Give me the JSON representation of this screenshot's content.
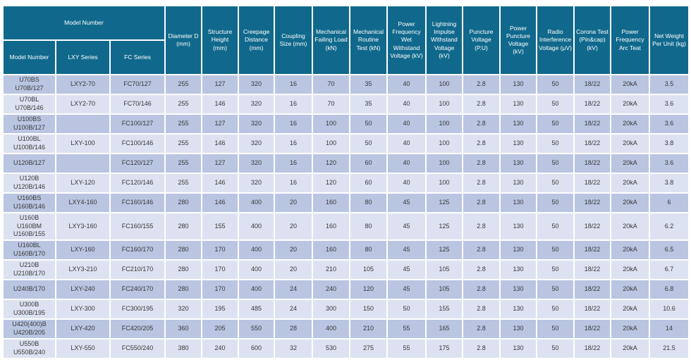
{
  "colors": {
    "header_bg": "#10698c",
    "header_text": "#ffffff",
    "row_dark": "#b9c5e1",
    "row_light": "#dce2f1",
    "cell_text": "#383838",
    "grid": "#ffffff"
  },
  "table": {
    "header_group": {
      "label": "Model Number",
      "span": 3
    },
    "sub_columns": [
      "Model Number",
      "LXY Series",
      "FC Series"
    ],
    "columns": [
      "Diameter D (mm)",
      "Structure Height (mm)",
      "Creepage Distance (mm)",
      "Coupling Size (mm)",
      "Mechanical Failing Load (kN)",
      "Mechanical Routine Test (kN)",
      "Power Frequency Wet Withstand Voltage (kV)",
      "Lightning Impulse Withstand Voltage (kV)",
      "Puncture Voltage (P.U)",
      "Power Puncture Voltage (kV)",
      "Radio Interference Voltage (μV)",
      "Corona Test (Pin&cap) (kV)",
      "Power Frequency Arc Teat",
      "Net Weight Per Unit (kg)"
    ],
    "rows": [
      [
        "U70BS\nU70B/127",
        "LXY2-70",
        "FC70/127",
        "255",
        "127",
        "320",
        "16",
        "70",
        "35",
        "40",
        "100",
        "2.8",
        "130",
        "50",
        "18/22",
        "20kA",
        "3.5"
      ],
      [
        "U70BL\nU70B/146",
        "LXY2-70",
        "FC70/146",
        "255",
        "146",
        "320",
        "16",
        "70",
        "35",
        "40",
        "100",
        "2.8",
        "130",
        "50",
        "18/22",
        "20kA",
        "3.6"
      ],
      [
        "U100BS\nU100B/127",
        "",
        "FC100/127",
        "255",
        "127",
        "320",
        "16",
        "100",
        "50",
        "40",
        "100",
        "2.8",
        "130",
        "50",
        "18/22",
        "20kA",
        "3.6"
      ],
      [
        "U100BL\nU100B/146",
        "LXY-100",
        "FC100/146",
        "255",
        "146",
        "320",
        "16",
        "100",
        "50",
        "40",
        "100",
        "2.8",
        "130",
        "50",
        "18/22",
        "20kA",
        "3.8"
      ],
      [
        "U120B/127",
        "",
        "FC120/127",
        "255",
        "127",
        "320",
        "16",
        "120",
        "60",
        "40",
        "100",
        "2.8",
        "130",
        "50",
        "18/22",
        "20kA",
        "3.6"
      ],
      [
        "U120B\nU120B/146",
        "LXY-120",
        "FC120/146",
        "255",
        "146",
        "320",
        "16",
        "120",
        "60",
        "40",
        "100",
        "2.8",
        "130",
        "50",
        "18/22",
        "20kA",
        "3.8"
      ],
      [
        "U160BS\nU160B/146",
        "LXY4-160",
        "FC160/146",
        "280",
        "146",
        "400",
        "20",
        "160",
        "80",
        "45",
        "125",
        "2.8",
        "130",
        "50",
        "18/22",
        "20kA",
        "6"
      ],
      [
        "U160B\nU160BM\nU160B/155",
        "LXY3-160",
        "FC160/155",
        "280",
        "155",
        "400",
        "20",
        "160",
        "80",
        "45",
        "125",
        "2.8",
        "130",
        "50",
        "18/22",
        "20kA",
        "6.2"
      ],
      [
        "U160BL\nU160B/170",
        "LXY-160",
        "FC160/170",
        "280",
        "170",
        "400",
        "20",
        "160",
        "80",
        "45",
        "125",
        "2.8",
        "130",
        "50",
        "18/22",
        "20kA",
        "6.5"
      ],
      [
        "U210B\nU210B/170",
        "LXY3-210",
        "FC210/170",
        "280",
        "170",
        "400",
        "20",
        "210",
        "105",
        "45",
        "105",
        "2.8",
        "130",
        "50",
        "18/22",
        "20kA",
        "6.7"
      ],
      [
        "U240B/170",
        "LXY-240",
        "FC240/170",
        "280",
        "170",
        "400",
        "24",
        "240",
        "120",
        "45",
        "105",
        "2.8",
        "130",
        "50",
        "18/22",
        "20kA",
        "6.8"
      ],
      [
        "U300B\nU300B/195",
        "LXY-300",
        "FC300/195",
        "320",
        "195",
        "485",
        "24",
        "300",
        "150",
        "50",
        "155",
        "2.8",
        "130",
        "50",
        "18/22",
        "20kA",
        "10.6"
      ],
      [
        "U420(400)B\nU420B/205",
        "LXY-420",
        "FC420/205",
        "360",
        "205",
        "550",
        "28",
        "400",
        "210",
        "55",
        "165",
        "2.8",
        "130",
        "50",
        "18/22",
        "20kA",
        "14"
      ],
      [
        "U550B\nU550B/240",
        "LXY-550",
        "FC550/240",
        "380",
        "240",
        "600",
        "32",
        "530",
        "275",
        "55",
        "175",
        "2.8",
        "130",
        "50",
        "18/22",
        "20kA",
        "21.5"
      ]
    ]
  }
}
